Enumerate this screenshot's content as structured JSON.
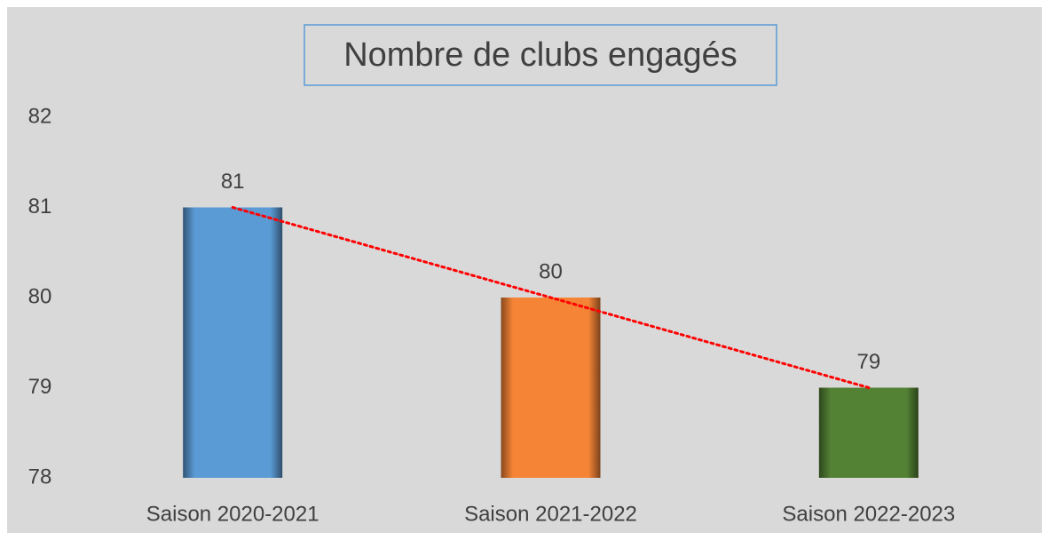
{
  "chart_data": {
    "type": "bar",
    "title": "Nombre de clubs engagés",
    "categories": [
      "Saison 2020-2021",
      "Saison 2021-2022",
      "Saison 2022-2023"
    ],
    "values": [
      81,
      80,
      79
    ],
    "colors": [
      "#5b9bd5",
      "#f58436",
      "#548235"
    ],
    "ylim": [
      78,
      82
    ],
    "yticks": [
      78,
      79,
      80,
      81,
      82
    ],
    "grid": false,
    "data_labels": true,
    "trendline": true,
    "trendline_color": "#ff0000"
  }
}
